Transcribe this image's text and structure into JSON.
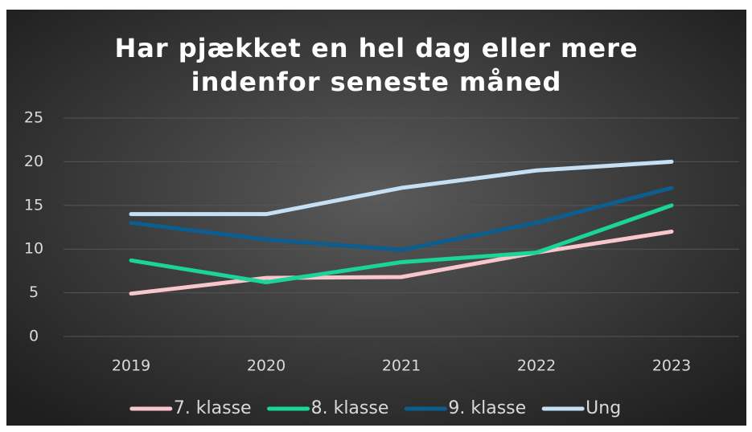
{
  "chart_data": {
    "type": "line",
    "title": [
      "Har pjækket en hel dag eller mere",
      "indenfor seneste måned"
    ],
    "categories": [
      "2019",
      "2020",
      "2021",
      "2022",
      "2023"
    ],
    "series": [
      {
        "name": "7. klasse",
        "color": "#f8c7cc",
        "values": [
          4.9,
          6.7,
          6.8,
          9.6,
          12
        ]
      },
      {
        "name": "8. klasse",
        "color": "#1bd49a",
        "values": [
          8.7,
          6.2,
          8.5,
          9.6,
          15
        ]
      },
      {
        "name": "9. klasse",
        "color": "#0b5e8f",
        "values": [
          13,
          11.1,
          9.9,
          13,
          17
        ]
      },
      {
        "name": "Ung",
        "color": "#c5e0f5",
        "values": [
          14,
          14,
          17,
          19,
          20
        ]
      }
    ],
    "ylim": [
      0,
      25
    ],
    "yticks": [
      0,
      5,
      10,
      15,
      20,
      25
    ],
    "grid": true,
    "legend": "bottom"
  }
}
